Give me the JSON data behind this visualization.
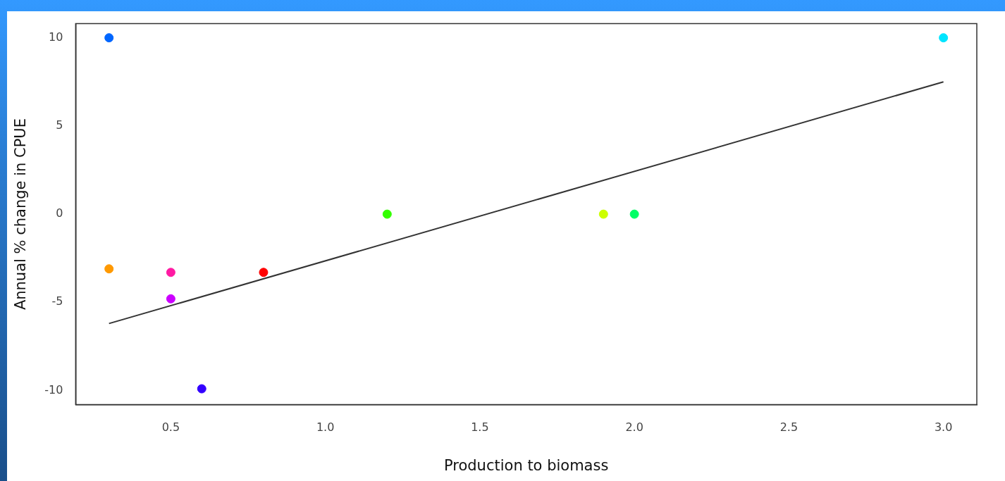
{
  "chart_data": {
    "type": "scatter",
    "xlabel": "Production to biomass",
    "ylabel": "Annual % change in CPUE",
    "xlim": [
      0.192,
      3.108
    ],
    "ylim": [
      -10.8,
      10.8
    ],
    "xticks": [
      {
        "value": 0.5,
        "label": "0.5"
      },
      {
        "value": 1,
        "label": "1.0"
      },
      {
        "value": 1.5,
        "label": "1.5"
      },
      {
        "value": 2,
        "label": "2.0"
      },
      {
        "value": 2.5,
        "label": "2.5"
      },
      {
        "value": 3,
        "label": "3.0"
      }
    ],
    "yticks": [
      -10,
      -5,
      0,
      5,
      10
    ],
    "grid": false,
    "legend": false,
    "series": [
      {
        "type": "scatter",
        "x": [
          0.3,
          0.3,
          0.5,
          0.5,
          0.6,
          0.8,
          1.2,
          1.9,
          2.0,
          3.0
        ],
        "values": [
          10,
          -3.1,
          -3.3,
          -4.8,
          -9.9,
          -3.3,
          0,
          0,
          0,
          10
        ],
        "colors": [
          "#0066ff",
          "#ff9900",
          "#ff1aa3",
          "#cc00ff",
          "#3300ff",
          "#ff0000",
          "#33ff00",
          "#ccff00",
          "#00ff66",
          "#00e5ff"
        ],
        "marker": "circle"
      },
      {
        "type": "line",
        "x": [
          0.3,
          3.0
        ],
        "values": [
          -6.2,
          7.5
        ],
        "color": "#333333",
        "line_style": "solid",
        "marker": "none"
      }
    ]
  }
}
